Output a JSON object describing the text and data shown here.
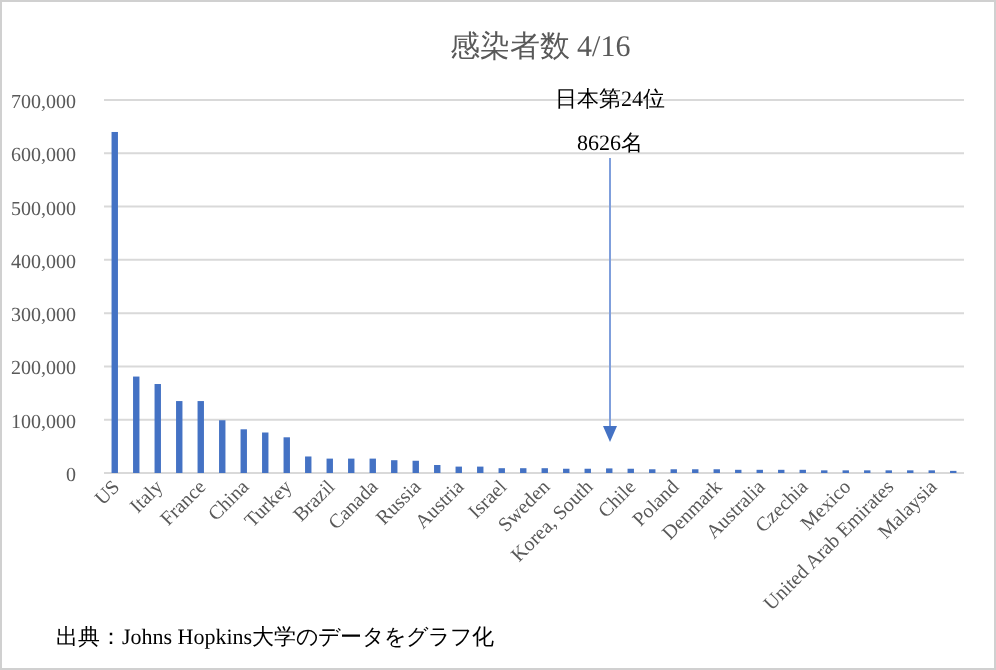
{
  "chart_data": {
    "type": "bar",
    "title": "感染者数 4/16",
    "categories": [
      "US",
      null,
      "Italy",
      null,
      "France",
      null,
      "China",
      null,
      "Turkey",
      null,
      "Brazil",
      null,
      "Canada",
      null,
      "Russia",
      null,
      "Austria",
      null,
      "Israel",
      null,
      "Sweden",
      null,
      "Korea, South",
      null,
      "Chile",
      null,
      "Poland",
      null,
      "Denmark",
      null,
      "Australia",
      null,
      "Czechia",
      null,
      "Mexico",
      null,
      "United Arab Emirates",
      null,
      "Malaysia",
      null
    ],
    "values": [
      640000,
      181000,
      167000,
      135000,
      135000,
      99000,
      82000,
      76000,
      67000,
      31000,
      27000,
      27000,
      27000,
      24000,
      23000,
      15000,
      12000,
      12000,
      9000,
      9000,
      9000,
      8000,
      8000,
      8626,
      8000,
      7000,
      7000,
      7000,
      7000,
      6000,
      6000,
      6000,
      6000,
      5000,
      5000,
      5000,
      5000,
      5000,
      5000,
      4000
    ],
    "color": "#4472c4",
    "ylim": [
      0,
      700000
    ],
    "yticks": [
      {
        "value": 0,
        "label": "0"
      },
      {
        "value": 100000,
        "label": "100,000"
      },
      {
        "value": 200000,
        "label": "200,000"
      },
      {
        "value": 300000,
        "label": "300,000"
      },
      {
        "value": 400000,
        "label": "400,000"
      },
      {
        "value": 500000,
        "label": "500,000"
      },
      {
        "value": 600000,
        "label": "600,000"
      },
      {
        "value": 700000,
        "label": "700,000"
      }
    ],
    "grid": "y",
    "annotations": [
      "日本第24位",
      "8626名",
      "出典：Johns Hopkins大学のデータをグラフ化"
    ]
  }
}
